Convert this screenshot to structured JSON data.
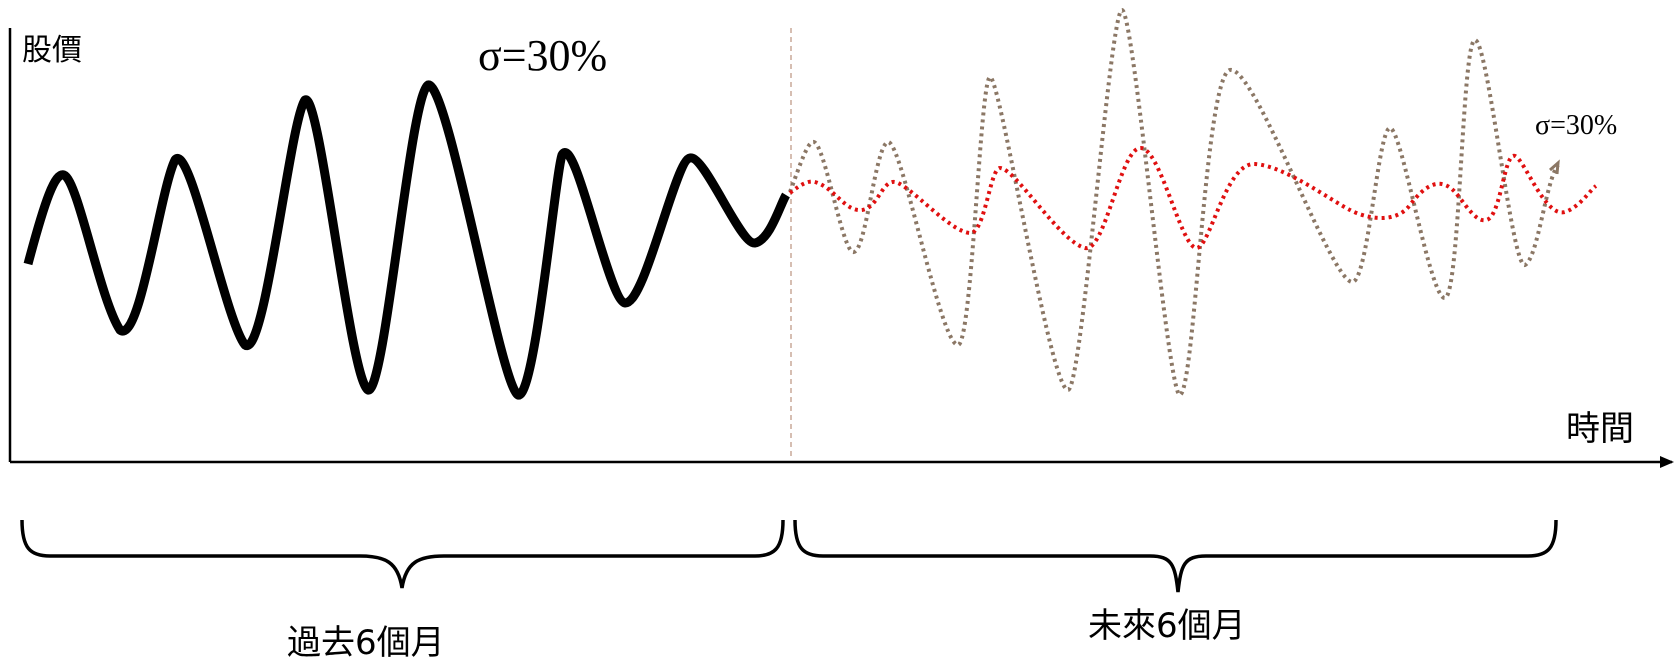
{
  "axes": {
    "y_label": "股價",
    "x_label": "時間"
  },
  "annotations": {
    "past_volatility": "σ=30%",
    "future_volatility": "σ=30%"
  },
  "periods": {
    "past": "過去6個月",
    "future": "未來6個月"
  },
  "colors": {
    "past_path": "#000000",
    "future_path_wide": "#8B7765",
    "future_path_narrow": "#E01010",
    "divider": "#C8A898",
    "axis": "#000000"
  }
}
